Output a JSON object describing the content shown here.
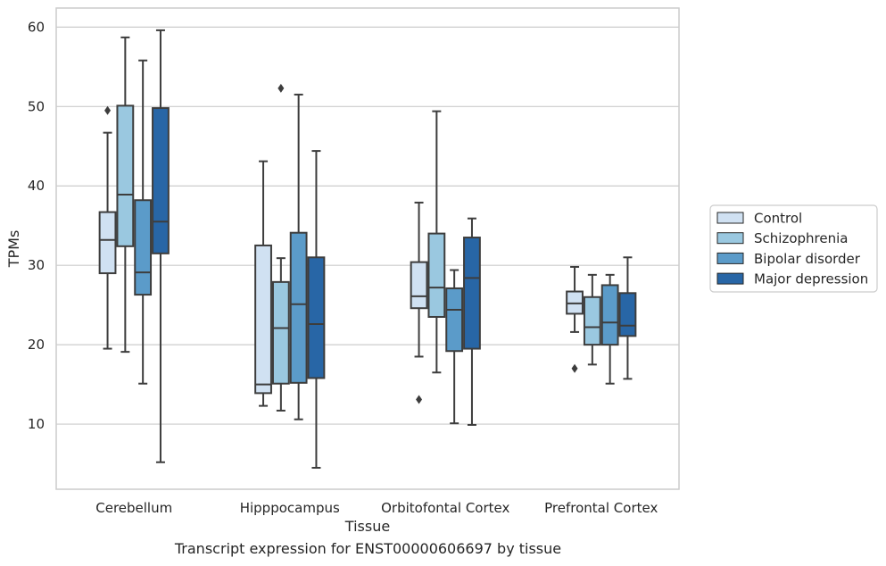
{
  "caption": "Transcript expression for ENST00000606697 by tissue",
  "chart_data": {
    "type": "boxplot",
    "xlabel": "Tissue",
    "ylabel": "TPMs",
    "ylim": [
      1.8,
      62.4
    ],
    "yticks": [
      10,
      20,
      30,
      40,
      50,
      60
    ],
    "grid": "horizontal",
    "legend_position": "outside-right",
    "categories": [
      "Cerebellum",
      "Hipppocampus",
      "Orbitofontal Cortex",
      "Prefrontal Cortex"
    ],
    "series": [
      {
        "name": "Control",
        "color": "#d0e1f2",
        "boxes": [
          {
            "whislo": 19.5,
            "q1": 29.0,
            "median": 33.2,
            "q3": 36.7,
            "whishi": 46.7,
            "fliers": [
              49.5
            ]
          },
          {
            "whislo": 12.3,
            "q1": 13.9,
            "median": 15.0,
            "q3": 32.5,
            "whishi": 43.1,
            "fliers": []
          },
          {
            "whislo": 18.5,
            "q1": 24.6,
            "median": 26.1,
            "q3": 30.4,
            "whishi": 37.9,
            "fliers": [
              13.1
            ]
          },
          {
            "whislo": 21.6,
            "q1": 23.9,
            "median": 25.2,
            "q3": 26.7,
            "whishi": 29.8,
            "fliers": [
              17.0
            ]
          }
        ]
      },
      {
        "name": "Schizophrenia",
        "color": "#9ac8e0",
        "boxes": [
          {
            "whislo": 19.1,
            "q1": 32.4,
            "median": 38.9,
            "q3": 50.1,
            "whishi": 58.7,
            "fliers": []
          },
          {
            "whislo": 11.7,
            "q1": 15.1,
            "median": 22.1,
            "q3": 27.9,
            "whishi": 30.9,
            "fliers": [
              52.3
            ]
          },
          {
            "whislo": 16.5,
            "q1": 23.5,
            "median": 27.2,
            "q3": 34.0,
            "whishi": 49.4,
            "fliers": []
          },
          {
            "whislo": 17.5,
            "q1": 20.0,
            "median": 22.2,
            "q3": 26.0,
            "whishi": 28.8,
            "fliers": []
          }
        ]
      },
      {
        "name": "Bipolar disorder",
        "color": "#5b9bc9",
        "boxes": [
          {
            "whislo": 15.1,
            "q1": 26.3,
            "median": 29.1,
            "q3": 38.2,
            "whishi": 55.8,
            "fliers": []
          },
          {
            "whislo": 10.6,
            "q1": 15.2,
            "median": 25.1,
            "q3": 34.1,
            "whishi": 51.5,
            "fliers": []
          },
          {
            "whislo": 10.1,
            "q1": 19.2,
            "median": 24.4,
            "q3": 27.1,
            "whishi": 29.4,
            "fliers": []
          },
          {
            "whislo": 15.1,
            "q1": 20.0,
            "median": 22.8,
            "q3": 27.5,
            "whishi": 28.8,
            "fliers": []
          }
        ]
      },
      {
        "name": "Major depression",
        "color": "#2866a6",
        "boxes": [
          {
            "whislo": 5.2,
            "q1": 31.5,
            "median": 35.5,
            "q3": 49.8,
            "whishi": 59.6,
            "fliers": []
          },
          {
            "whislo": 4.5,
            "q1": 15.8,
            "median": 22.6,
            "q3": 31.0,
            "whishi": 44.4,
            "fliers": []
          },
          {
            "whislo": 9.9,
            "q1": 19.5,
            "median": 28.4,
            "q3": 33.5,
            "whishi": 35.9,
            "fliers": []
          },
          {
            "whislo": 15.7,
            "q1": 21.1,
            "median": 22.4,
            "q3": 26.5,
            "whishi": 31.0,
            "fliers": []
          }
        ]
      }
    ]
  }
}
